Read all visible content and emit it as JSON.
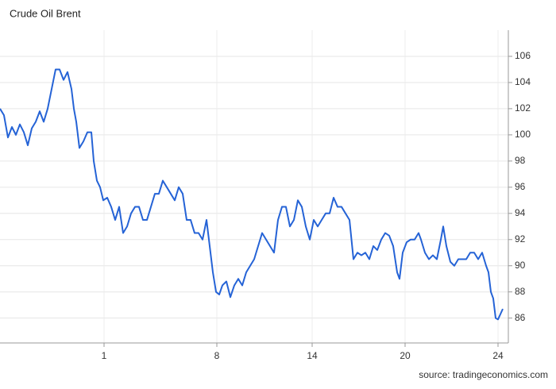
{
  "chart_data": {
    "type": "line",
    "title": "Crude Oil Brent",
    "source": "source: tradingeconomics.com",
    "color": "#2563d6",
    "grid": true,
    "xlim": [
      0,
      64
    ],
    "ylim": [
      84.1,
      108
    ],
    "xticks": [
      {
        "value": 13.1,
        "label": "1"
      },
      {
        "value": 27.3,
        "label": "8"
      },
      {
        "value": 39.3,
        "label": "14"
      },
      {
        "value": 51,
        "label": "20"
      },
      {
        "value": 62.7,
        "label": "24"
      }
    ],
    "yticks": [
      86,
      88,
      90,
      92,
      94,
      96,
      98,
      100,
      102,
      104,
      106
    ],
    "x": [
      0,
      0.5,
      1,
      1.5,
      2,
      2.5,
      3,
      3.5,
      4,
      4.5,
      5,
      5.5,
      6,
      6.5,
      7,
      7.5,
      8,
      8.5,
      9,
      9.3,
      9.6,
      10,
      10.5,
      11,
      11.5,
      11.8,
      12.2,
      12.6,
      13,
      13.5,
      14,
      14.5,
      15,
      15.5,
      16,
      16.5,
      17,
      17.5,
      18,
      18.5,
      19,
      19.5,
      20,
      20.5,
      21,
      21.5,
      22,
      22.5,
      23,
      23.5,
      24,
      24.5,
      25,
      25.5,
      26,
      26.5,
      26.8,
      27.2,
      27.6,
      28,
      28.5,
      29,
      29.5,
      30,
      30.5,
      31,
      31.5,
      32,
      32.5,
      33,
      33.5,
      34,
      34.5,
      35,
      35.5,
      36,
      36.5,
      37,
      37.5,
      38,
      38.5,
      39,
      39.5,
      40,
      40.5,
      41,
      41.5,
      42,
      42.5,
      43,
      43.5,
      44,
      44.5,
      45,
      45.5,
      46,
      46.5,
      47,
      47.5,
      48,
      48.5,
      49,
      49.5,
      50,
      50.3,
      50.7,
      51.2,
      51.7,
      52.2,
      52.7,
      53,
      53.5,
      54,
      54.5,
      55,
      55.5,
      55.8,
      56.2,
      56.7,
      57.2,
      57.7,
      58.2,
      58.7,
      59.2,
      59.7,
      60.2,
      60.7,
      61.2,
      61.5,
      61.8,
      62.1,
      62.4,
      62.7,
      63,
      63.3
    ],
    "values": [
      102.0,
      101.5,
      99.8,
      100.6,
      100,
      100.8,
      100.2,
      99.2,
      100.5,
      101,
      101.8,
      101,
      102,
      103.5,
      105,
      105,
      104.2,
      104.8,
      103.5,
      102,
      101,
      99,
      99.5,
      100.2,
      100.2,
      98,
      96.5,
      96,
      95,
      95.2,
      94.5,
      93.5,
      94.5,
      92.5,
      93,
      94,
      94.5,
      94.5,
      93.5,
      93.5,
      94.5,
      95.5,
      95.5,
      96.5,
      96,
      95.5,
      95,
      96,
      95.5,
      93.5,
      93.5,
      92.5,
      92.5,
      92,
      93.5,
      91,
      89.5,
      88,
      87.8,
      88.5,
      88.8,
      87.6,
      88.5,
      89,
      88.5,
      89.5,
      90,
      90.5,
      91.5,
      92.5,
      92,
      91.5,
      91,
      93.5,
      94.5,
      94.5,
      93,
      93.5,
      95,
      94.5,
      93,
      92,
      93.5,
      93,
      93.5,
      94,
      94,
      95.2,
      94.5,
      94.5,
      94,
      93.5,
      90.5,
      91,
      90.8,
      91,
      90.5,
      91.5,
      91.2,
      92,
      92.5,
      92.3,
      91.5,
      89.5,
      89,
      91,
      91.8,
      92,
      92,
      92.5,
      92,
      91,
      90.5,
      90.8,
      90.5,
      92,
      93,
      91.5,
      90.3,
      90,
      90.5,
      90.5,
      90.5,
      91,
      91,
      90.5,
      91,
      90,
      89.5,
      88,
      87.5,
      86,
      85.9,
      86.3,
      86.7
    ]
  }
}
